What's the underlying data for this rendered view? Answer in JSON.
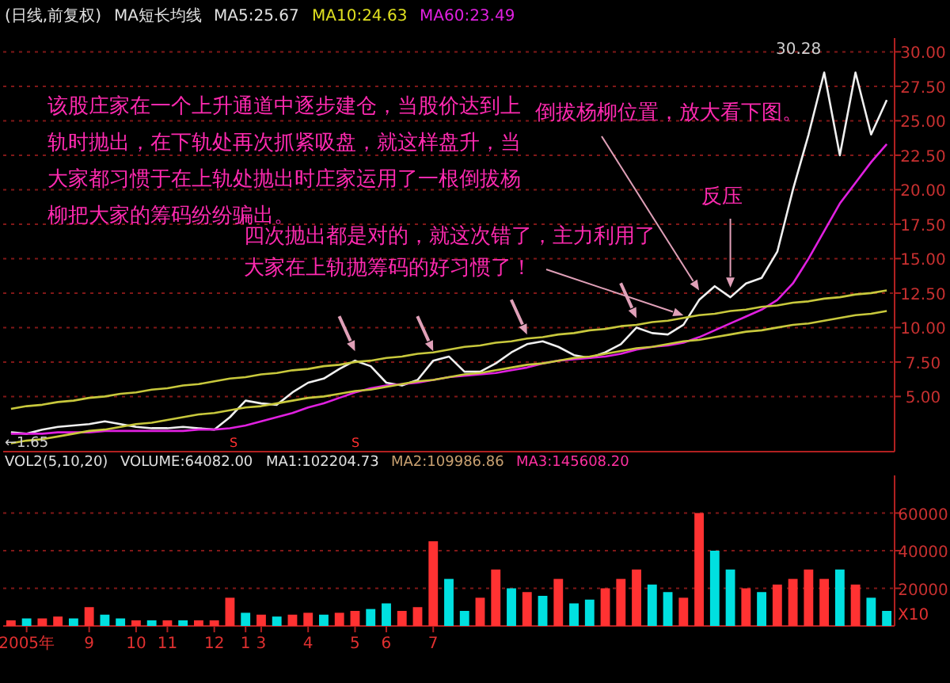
{
  "chart_data": [
    {
      "type": "line",
      "categories": [
        null,
        null,
        null,
        null,
        null,
        null,
        null,
        null,
        null,
        null,
        null,
        null,
        null,
        null,
        null,
        null,
        null,
        null,
        null,
        null,
        null,
        null,
        null,
        null,
        null,
        null,
        null,
        null,
        null,
        null,
        null,
        null,
        null,
        null,
        null,
        null,
        null,
        null,
        null,
        null,
        null,
        null,
        null,
        null,
        null,
        null,
        null,
        null,
        null,
        null,
        null,
        null,
        null,
        null,
        null,
        null,
        null
      ],
      "ylim": [
        1,
        31
      ],
      "yticks": [
        {
          "value": 5,
          "label": "5.00"
        },
        {
          "value": 7.5,
          "label": "7.50"
        },
        {
          "value": 10,
          "label": "10.00"
        },
        {
          "value": 12.5,
          "label": "12.50"
        },
        {
          "value": 15,
          "label": "15.00"
        },
        {
          "value": 17.5,
          "label": "17.50"
        },
        {
          "value": 20,
          "label": "20.00"
        },
        {
          "value": 22.5,
          "label": "22.50"
        },
        {
          "value": 25,
          "label": "25.00"
        },
        {
          "value": 27.5,
          "label": "27.50"
        },
        {
          "value": 30,
          "label": "30.00"
        }
      ],
      "tick_labels": "y",
      "grid": "y",
      "legend": "top left",
      "series": [
        {
          "color": "#f0f0f0",
          "values": [
            2.4,
            2.3,
            2.6,
            2.8,
            2.9,
            3.0,
            3.2,
            3.0,
            2.8,
            2.7,
            2.7,
            2.8,
            2.7,
            2.6,
            3.5,
            4.7,
            4.5,
            4.4,
            5.3,
            6.0,
            6.3,
            7.0,
            7.6,
            7.2,
            6.0,
            5.8,
            6.2,
            7.6,
            7.9,
            6.8,
            6.8,
            7.4,
            8.2,
            8.8,
            9.0,
            8.6,
            8.0,
            7.8,
            8.2,
            8.8,
            10.0,
            9.6,
            9.5,
            10.2,
            12.0,
            13.0,
            12.2,
            13.2,
            13.6,
            15.5,
            20.0,
            24.0,
            28.5,
            22.5,
            28.5,
            24.0,
            26.5
          ]
        },
        {
          "name": "MA60:23.49",
          "color": "#e020e0",
          "values": [
            2.3,
            2.3,
            2.3,
            2.4,
            2.4,
            2.4,
            2.5,
            2.5,
            2.5,
            2.5,
            2.5,
            2.5,
            2.6,
            2.6,
            2.7,
            2.9,
            3.2,
            3.5,
            3.8,
            4.2,
            4.5,
            4.9,
            5.3,
            5.6,
            5.8,
            5.9,
            6.0,
            6.2,
            6.4,
            6.5,
            6.6,
            6.7,
            6.9,
            7.1,
            7.4,
            7.6,
            7.7,
            7.8,
            7.9,
            8.1,
            8.4,
            8.6,
            8.7,
            8.9,
            9.3,
            9.8,
            10.3,
            10.8,
            11.3,
            12.0,
            13.2,
            15.0,
            17.0,
            19.0,
            20.5,
            22.0,
            23.3
          ]
        },
        {
          "color": "#c8c83c",
          "values": [
            4.1,
            4.3,
            4.4,
            4.6,
            4.7,
            4.9,
            5.0,
            5.2,
            5.3,
            5.5,
            5.6,
            5.8,
            5.9,
            6.1,
            6.3,
            6.4,
            6.6,
            6.7,
            6.9,
            7.0,
            7.2,
            7.3,
            7.5,
            7.6,
            7.8,
            7.9,
            8.1,
            8.2,
            8.4,
            8.6,
            8.7,
            8.9,
            9.0,
            9.2,
            9.3,
            9.5,
            9.6,
            9.8,
            9.9,
            10.1,
            10.2,
            10.4,
            10.5,
            10.7,
            10.9,
            11.0,
            11.2,
            11.3,
            11.5,
            11.6,
            11.8,
            11.9,
            12.1,
            12.2,
            12.4,
            12.5,
            12.7
          ]
        },
        {
          "color": "#c8c83c",
          "values": [
            1.6,
            1.8,
            1.9,
            2.1,
            2.3,
            2.5,
            2.6,
            2.8,
            3.0,
            3.1,
            3.3,
            3.5,
            3.7,
            3.8,
            4.0,
            4.2,
            4.3,
            4.5,
            4.7,
            4.9,
            5.0,
            5.2,
            5.4,
            5.5,
            5.7,
            5.9,
            6.1,
            6.2,
            6.4,
            6.6,
            6.7,
            6.9,
            7.1,
            7.3,
            7.4,
            7.6,
            7.8,
            7.9,
            8.1,
            8.3,
            8.5,
            8.6,
            8.8,
            9.0,
            9.1,
            9.3,
            9.5,
            9.7,
            9.8,
            10.0,
            10.2,
            10.3,
            10.5,
            10.7,
            10.9,
            11.0,
            11.2
          ]
        }
      ],
      "annotations": [
        "(日线,前复权)",
        "MA短长均线",
        "MA5:25.67",
        "MA10:24.63",
        "30.28",
        "←1.65",
        "该股庄家在一个上升通道中逐步建仓，当股价达到上轨时抛出，在下轨处再次抓紧吸盘，就这样盘升，当大家都习惯于在上轨处抛出时庄家运用了一根倒拔杨柳把大家的筹码纷纷骗出。",
        "倒拔杨柳位置，放大看下图。",
        "反压",
        "四次抛出都是对的，就这次错了，主力利用了大家在上轨抛筹码的好习惯了！"
      ]
    },
    {
      "type": "bar",
      "categories": [
        null,
        "2005年",
        null,
        null,
        null,
        "9",
        null,
        null,
        "10",
        null,
        "11",
        null,
        null,
        "12",
        null,
        "1",
        "3",
        null,
        null,
        "4",
        null,
        null,
        "5",
        null,
        "6",
        null,
        null,
        "7",
        null,
        null,
        null,
        null,
        null,
        null,
        null,
        null,
        null,
        null,
        null,
        null,
        null,
        null,
        null,
        null,
        null,
        null,
        null,
        null,
        null,
        null,
        null,
        null,
        null,
        null,
        null,
        null,
        null
      ],
      "ylim": [
        0,
        80000
      ],
      "yticks": [
        20000,
        40000,
        60000
      ],
      "grid": "y",
      "values": [
        3000,
        4000,
        4000,
        5000,
        4000,
        10000,
        6000,
        4000,
        3000,
        3000,
        3000,
        3000,
        3000,
        3000,
        15000,
        7000,
        6000,
        5000,
        6000,
        7000,
        6000,
        7000,
        8000,
        9000,
        12000,
        8000,
        10000,
        45000,
        25000,
        8000,
        15000,
        30000,
        20000,
        18000,
        16000,
        25000,
        12000,
        14000,
        20000,
        25000,
        30000,
        22000,
        18000,
        15000,
        60000,
        40000,
        30000,
        20000,
        18000,
        22000,
        25000,
        30000,
        25000,
        30000,
        22000,
        15000,
        8000
      ],
      "colors": [
        "#ff3232",
        "#00e0e0",
        "#ff3232",
        "#ff3232",
        "#00e0e0",
        "#ff3232",
        "#00e0e0",
        "#00e0e0",
        "#ff3232",
        "#00e0e0",
        "#ff3232",
        "#00e0e0",
        "#ff3232",
        "#ff3232",
        "#ff3232",
        "#00e0e0",
        "#ff3232",
        "#00e0e0",
        "#ff3232",
        "#ff3232",
        "#00e0e0",
        "#ff3232",
        "#ff3232",
        "#00e0e0",
        "#00e0e0",
        "#ff3232",
        "#ff3232",
        "#ff3232",
        "#00e0e0",
        "#00e0e0",
        "#ff3232",
        "#ff3232",
        "#00e0e0",
        "#ff3232",
        "#00e0e0",
        "#ff3232",
        "#00e0e0",
        "#00e0e0",
        "#ff3232",
        "#ff3232",
        "#ff3232",
        "#00e0e0",
        "#00e0e0",
        "#ff3232",
        "#ff3232",
        "#00e0e0",
        "#00e0e0",
        "#ff3232",
        "#00e0e0",
        "#ff3232",
        "#ff3232",
        "#ff3232",
        "#ff3232",
        "#00e0e0",
        "#ff3232",
        "#00e0e0",
        "#00e0e0"
      ],
      "annotations": [
        "VOL2(5,10,20)",
        "VOLUME:64082.00",
        "MA1:102204.73",
        "MA2:109986.86",
        "MA3:145608.20",
        "X10",
        "S",
        "S"
      ]
    }
  ]
}
